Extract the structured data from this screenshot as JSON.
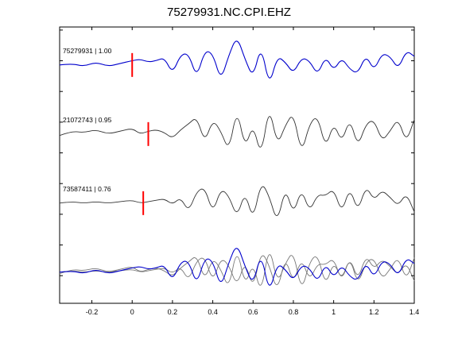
{
  "chart_data": {
    "type": "line",
    "title": "75279931.NC.CPI.EHZ",
    "xlabel": "",
    "ylabel": "",
    "xlim": [
      -0.36,
      1.4
    ],
    "xticks": [
      -0.2,
      0,
      0.2,
      0.4,
      0.6,
      0.8,
      1,
      1.2,
      1.4
    ],
    "xtick_labels": [
      "-0.2",
      "0",
      "0.2",
      "0.4",
      "0.6",
      "0.8",
      "1",
      "1.2",
      "1.4"
    ],
    "grid": false,
    "traces": [
      {
        "name": "75279931 | 1.00",
        "color": "#0000cc",
        "pick_time": 0.0,
        "pick_color": "#ff0000",
        "t": [
          -0.36,
          -0.3,
          -0.24,
          -0.18,
          -0.12,
          -0.06,
          0.0,
          0.04,
          0.08,
          0.12,
          0.16,
          0.2,
          0.24,
          0.28,
          0.32,
          0.36,
          0.4,
          0.44,
          0.48,
          0.52,
          0.56,
          0.6,
          0.64,
          0.68,
          0.72,
          0.76,
          0.8,
          0.84,
          0.88,
          0.92,
          0.96,
          1.0,
          1.04,
          1.08,
          1.12,
          1.16,
          1.2,
          1.24,
          1.28,
          1.32,
          1.36,
          1.4
        ],
        "y": [
          0.0,
          0.05,
          -0.05,
          0.1,
          -0.05,
          0.05,
          0.15,
          0.2,
          0.1,
          0.15,
          0.25,
          -0.3,
          0.35,
          0.4,
          -0.45,
          0.5,
          0.4,
          -0.55,
          0.35,
          1.0,
          0.2,
          -0.45,
          0.7,
          -0.75,
          0.3,
          0.1,
          -0.3,
          0.25,
          0.15,
          -0.35,
          0.3,
          -0.2,
          0.25,
          -0.15,
          -0.3,
          0.35,
          -0.2,
          0.4,
          0.3,
          -0.15,
          0.5,
          0.3
        ]
      },
      {
        "name": "21072743 | 0.95",
        "color": "#333333",
        "pick_time": 0.08,
        "pick_color": "#ff0000",
        "t": [
          -0.36,
          -0.3,
          -0.24,
          -0.18,
          -0.12,
          -0.06,
          0.0,
          0.04,
          0.08,
          0.12,
          0.16,
          0.2,
          0.24,
          0.28,
          0.32,
          0.36,
          0.4,
          0.44,
          0.48,
          0.52,
          0.56,
          0.6,
          0.64,
          0.68,
          0.72,
          0.76,
          0.8,
          0.84,
          0.88,
          0.92,
          0.96,
          1.0,
          1.04,
          1.08,
          1.12,
          1.16,
          1.2,
          1.24,
          1.28,
          1.32,
          1.36,
          1.4
        ],
        "y": [
          -0.05,
          0.1,
          0.05,
          0.15,
          0.0,
          0.1,
          0.2,
          0.0,
          0.1,
          0.15,
          0.05,
          -0.15,
          0.15,
          0.35,
          0.6,
          -0.3,
          0.5,
          0.1,
          -0.6,
          0.9,
          -0.5,
          0.35,
          -0.8,
          1.0,
          -0.4,
          0.3,
          0.75,
          -0.7,
          0.35,
          0.65,
          -0.5,
          0.4,
          -0.3,
          0.55,
          -0.45,
          0.35,
          0.5,
          -0.25,
          0.1,
          0.55,
          -0.3,
          0.5
        ]
      },
      {
        "name": "73587411 | 0.76",
        "color": "#333333",
        "pick_time": 0.055,
        "pick_color": "#ff0000",
        "t": [
          -0.36,
          -0.3,
          -0.24,
          -0.18,
          -0.12,
          -0.06,
          0.0,
          0.04,
          0.08,
          0.12,
          0.16,
          0.2,
          0.24,
          0.28,
          0.32,
          0.36,
          0.4,
          0.44,
          0.48,
          0.52,
          0.56,
          0.6,
          0.64,
          0.68,
          0.72,
          0.76,
          0.8,
          0.84,
          0.88,
          0.92,
          0.96,
          1.0,
          1.04,
          1.08,
          1.12,
          1.16,
          1.2,
          1.24,
          1.28,
          1.32,
          1.36,
          1.4
        ],
        "y": [
          0.0,
          0.05,
          0.0,
          0.05,
          0.0,
          0.05,
          0.1,
          0.0,
          0.05,
          0.1,
          0.15,
          -0.05,
          0.2,
          -0.3,
          0.4,
          0.55,
          -0.35,
          0.5,
          0.25,
          -0.5,
          0.4,
          -0.6,
          0.75,
          0.25,
          -0.7,
          0.55,
          -0.4,
          0.5,
          -0.3,
          0.3,
          0.25,
          0.5,
          -0.35,
          0.55,
          -0.3,
          0.6,
          0.1,
          0.45,
          0.2,
          -0.1,
          0.35,
          -0.3
        ]
      }
    ]
  }
}
